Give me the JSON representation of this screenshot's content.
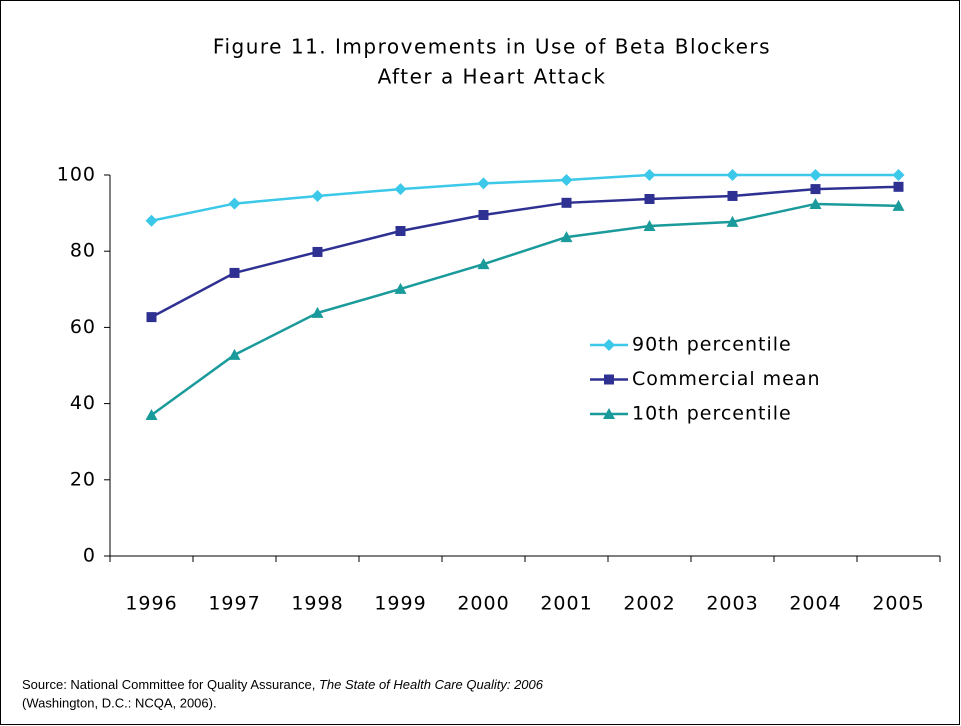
{
  "chart_data": {
    "type": "line",
    "title": [
      "Figure 11. Improvements in Use of Beta Blockers",
      "After a Heart Attack"
    ],
    "categories": [
      "1996",
      "1997",
      "1998",
      "1999",
      "2000",
      "2001",
      "2002",
      "2003",
      "2004",
      "2005"
    ],
    "series": [
      {
        "name": "90th percentile",
        "color": "#3cc8e8",
        "marker": "diamond",
        "values": [
          88,
          92.5,
          94.5,
          96.3,
          97.8,
          98.7,
          100,
          100,
          100,
          100
        ]
      },
      {
        "name": "Commercial mean",
        "color": "#2e3192",
        "marker": "square",
        "values": [
          62.7,
          74.3,
          79.8,
          85.3,
          89.5,
          92.7,
          93.7,
          94.5,
          96.3,
          96.9
        ]
      },
      {
        "name": "10th percentile",
        "color": "#1a9a9a",
        "marker": "triangle",
        "values": [
          37,
          52.8,
          63.8,
          70.1,
          76.6,
          83.7,
          86.6,
          87.7,
          92.4,
          91.9
        ]
      }
    ],
    "ylim": [
      0,
      100
    ],
    "yticks": [
      0,
      20,
      40,
      60,
      80,
      100
    ],
    "grid": false,
    "legend": "right",
    "source": {
      "prefix": "Source: National Committee for Quality Assurance, ",
      "work": "The State of Health Care Quality: 2006",
      "suffix": "(Washington, D.C.: NCQA, 2006)."
    }
  }
}
